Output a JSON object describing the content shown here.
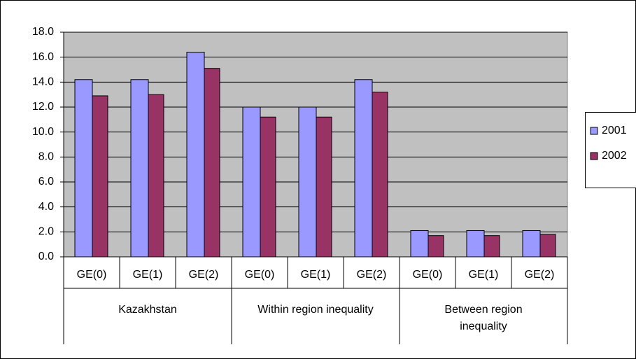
{
  "chart_data": {
    "type": "bar",
    "categories": [
      "GE(0)",
      "GE(1)",
      "GE(2)",
      "GE(0)",
      "GE(1)",
      "GE(2)",
      "GE(0)",
      "GE(1)",
      "GE(2)"
    ],
    "groups": [
      "Kazakhstan",
      "Within region inequality",
      "Between region inequality"
    ],
    "series": [
      {
        "name": "2001",
        "color": "#9999ff",
        "values": [
          14.2,
          14.2,
          16.4,
          12.0,
          12.0,
          14.2,
          2.1,
          2.1,
          2.1
        ]
      },
      {
        "name": "2002",
        "color": "#993366",
        "values": [
          12.9,
          13.0,
          15.1,
          11.2,
          11.2,
          13.2,
          1.7,
          1.7,
          1.8
        ]
      }
    ],
    "ylim": [
      0,
      18
    ],
    "yticks": [
      {
        "value": 0,
        "label": "0.0"
      },
      {
        "value": 2,
        "label": "2.0"
      },
      {
        "value": 4,
        "label": "4.0"
      },
      {
        "value": 6,
        "label": "6.0"
      },
      {
        "value": 8,
        "label": "8.0"
      },
      {
        "value": 10,
        "label": "10.0"
      },
      {
        "value": 12,
        "label": "12.0"
      },
      {
        "value": 14,
        "label": "14.0"
      },
      {
        "value": 16,
        "label": "16.0"
      },
      {
        "value": 18,
        "label": "18.0"
      }
    ],
    "grid": true,
    "legend": "right"
  }
}
